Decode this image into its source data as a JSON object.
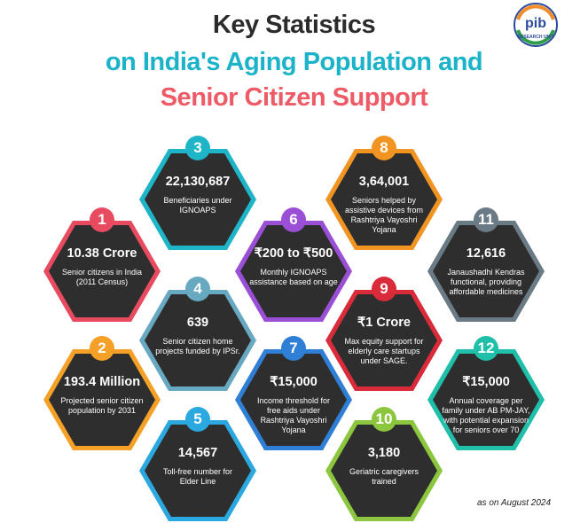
{
  "title": {
    "line1": "Key Statistics",
    "line2": "on India's Aging Population and",
    "line3": "Senior Citizen Support"
  },
  "logo": {
    "text": "pib",
    "subtext": "RESEARCH UNIT"
  },
  "colors": {
    "title_dark": "#2b2b2b",
    "title_teal": "#1ab3c9",
    "title_red": "#ee5a66",
    "hex_fill": "#2e2e2e"
  },
  "stats": [
    {
      "number": "1",
      "value": "10.38 Crore",
      "description": "Senior citizens in India (2011 Census)",
      "color": "#e84a5f"
    },
    {
      "number": "2",
      "value": "193.4 Million",
      "description": "Projected senior citizen population by 2031",
      "color": "#f5a027"
    },
    {
      "number": "3",
      "value": "22,130,687",
      "description": "Beneficiaries under IGNOAPS",
      "color": "#1fb5c9"
    },
    {
      "number": "4",
      "value": "639",
      "description": "Senior citizen home projects funded by IPSr.",
      "color": "#68a9c2"
    },
    {
      "number": "5",
      "value": "14,567",
      "description": "Toll-free number for Elder Line",
      "color": "#2aa8df"
    },
    {
      "number": "6",
      "value": "₹200 to ₹500",
      "description": "Monthly IGNOAPS assistance based on age",
      "color": "#9b4fd6"
    },
    {
      "number": "7",
      "value": "₹15,000",
      "description": "Income threshold for free aids under Rashtriya Vayoshri Yojana",
      "color": "#2f7fd6"
    },
    {
      "number": "8",
      "value": "3,64,001",
      "description": "Seniors helped by assistive devices from Rashtriya Vayoshri Yojana",
      "color": "#f29422"
    },
    {
      "number": "9",
      "value": "₹1 Crore",
      "description": "Max equity support for elderly care startups under SAGE.",
      "color": "#d92b3a"
    },
    {
      "number": "10",
      "value": "3,180",
      "description": "Geriatric caregivers trained",
      "color": "#8cc63f"
    },
    {
      "number": "11",
      "value": "12,616",
      "description": "Janaushadhi Kendras functional, providing affordable medicines",
      "color": "#6b7b86"
    },
    {
      "number": "12",
      "value": "₹15,000",
      "description": "Annual coverage per family under AB PM-JAY, with potential expansion for seniors over 70",
      "color": "#1fbfaa"
    }
  ],
  "footnote": "as on August 2024"
}
